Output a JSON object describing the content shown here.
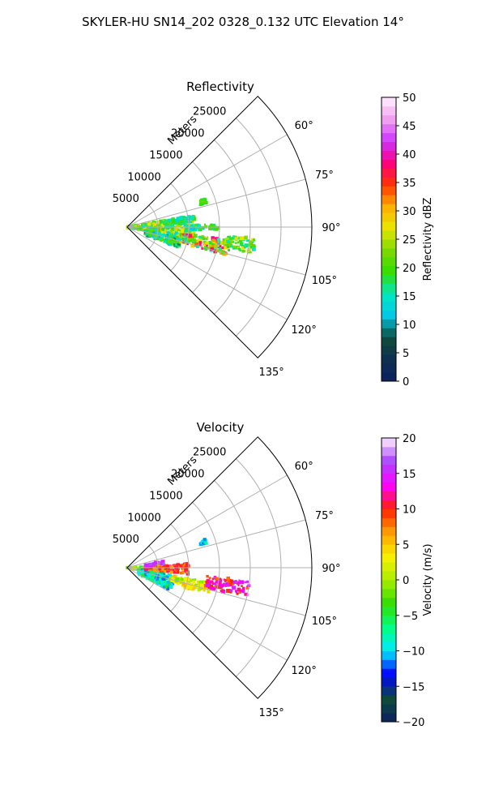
{
  "figure_title": "SKYLER-HU  SN14_202  0328_0.132 UTC Elevation 14°",
  "chart_data": [
    {
      "type": "heatmap",
      "subtype": "polar-sector (radar PPI)",
      "title": "Reflectivity",
      "radial_axis_label": "Meters",
      "radial_ticks": [
        "5000",
        "10000",
        "15000",
        "20000",
        "25000"
      ],
      "rlim": [
        0,
        30000
      ],
      "angle_ticks": [
        "60°",
        "75°",
        "90°",
        "105°",
        "120°",
        "135°"
      ],
      "theta_range_deg": [
        45,
        135
      ],
      "grid": true,
      "colorbar": {
        "label": "Reflectivity dBZ",
        "range": [
          0,
          50
        ],
        "ticks": [
          "0",
          "5",
          "10",
          "15",
          "20",
          "25",
          "30",
          "35",
          "40",
          "45",
          "50"
        ],
        "position": "right"
      },
      "echo_regions": [
        {
          "az": [
            80,
            100
          ],
          "range_m": [
            0,
            11000
          ],
          "value_range": [
            12,
            30
          ]
        },
        {
          "az": [
            101,
            112
          ],
          "range_m": [
            3000,
            9000
          ],
          "value_range": [
            8,
            22
          ]
        },
        {
          "az": [
            97,
            106
          ],
          "range_m": [
            9000,
            17000
          ],
          "value_range": [
            14,
            40
          ]
        },
        {
          "az": [
            95,
            102
          ],
          "range_m": [
            16000,
            21000
          ],
          "value_range": [
            14,
            28
          ]
        },
        {
          "az": [
            80,
            86
          ],
          "range_m": [
            6000,
            11000
          ],
          "value_range": [
            12,
            22
          ]
        },
        {
          "az": [
            70,
            73
          ],
          "range_m": [
            12500,
            13500
          ],
          "value_range": [
            18,
            24
          ]
        },
        {
          "az": [
            88,
            92
          ],
          "range_m": [
            10500,
            15000
          ],
          "value_range": [
            12,
            22
          ]
        }
      ]
    },
    {
      "type": "heatmap",
      "subtype": "polar-sector (radar PPI)",
      "title": "Velocity",
      "radial_axis_label": "Meters",
      "radial_ticks": [
        "5000",
        "10000",
        "15000",
        "20000",
        "25000"
      ],
      "rlim": [
        0,
        30000
      ],
      "angle_ticks": [
        "60°",
        "75°",
        "90°",
        "105°",
        "120°",
        "135°"
      ],
      "theta_range_deg": [
        45,
        135
      ],
      "grid": true,
      "colorbar": {
        "label": "Velocity (m/s)",
        "range": [
          -20,
          20
        ],
        "ticks": [
          "-20",
          "-15",
          "-10",
          "-5",
          "0",
          "5",
          "10",
          "15",
          "20"
        ],
        "position": "right"
      },
      "echo_regions": [
        {
          "az": [
            88,
            100
          ],
          "range_m": [
            0,
            6000
          ],
          "value_range": [
            -12,
            8
          ]
        },
        {
          "az": [
            100,
            118
          ],
          "range_m": [
            2000,
            8000
          ],
          "value_range": [
            -12,
            -4
          ]
        },
        {
          "az": [
            86,
            96
          ],
          "range_m": [
            3000,
            10000
          ],
          "value_range": [
            6,
            12
          ]
        },
        {
          "az": [
            80,
            85
          ],
          "range_m": [
            3000,
            6000
          ],
          "value_range": [
            14,
            18
          ]
        },
        {
          "az": [
            100,
            107
          ],
          "range_m": [
            7000,
            14000
          ],
          "value_range": [
            -2,
            6
          ]
        },
        {
          "az": [
            96,
            104
          ],
          "range_m": [
            13000,
            20000
          ],
          "value_range": [
            8,
            16
          ]
        },
        {
          "az": [
            105,
            109
          ],
          "range_m": [
            9500,
            11500
          ],
          "value_range": [
            2,
            6
          ]
        },
        {
          "az": [
            70,
            73
          ],
          "range_m": [
            12500,
            13500
          ],
          "value_range": [
            -12,
            -8
          ]
        }
      ]
    }
  ],
  "colors": {
    "refl_stops": [
      "#0b2060",
      "#103050",
      "#0d4d3a",
      "#00c8e8",
      "#00e8c0",
      "#33dd00",
      "#7ed800",
      "#e8e800",
      "#ffb000",
      "#ff3300",
      "#ff0080",
      "#cc33ff",
      "#f0a0f0",
      "#fff0ff"
    ],
    "vel_stops": [
      "#0b2060",
      "#0d4d3a",
      "#0000ff",
      "#00eaff",
      "#00ff80",
      "#33dd00",
      "#aaee00",
      "#f8f000",
      "#ffa000",
      "#ff2000",
      "#ff00ff",
      "#aa44ff",
      "#fff0ff"
    ]
  }
}
